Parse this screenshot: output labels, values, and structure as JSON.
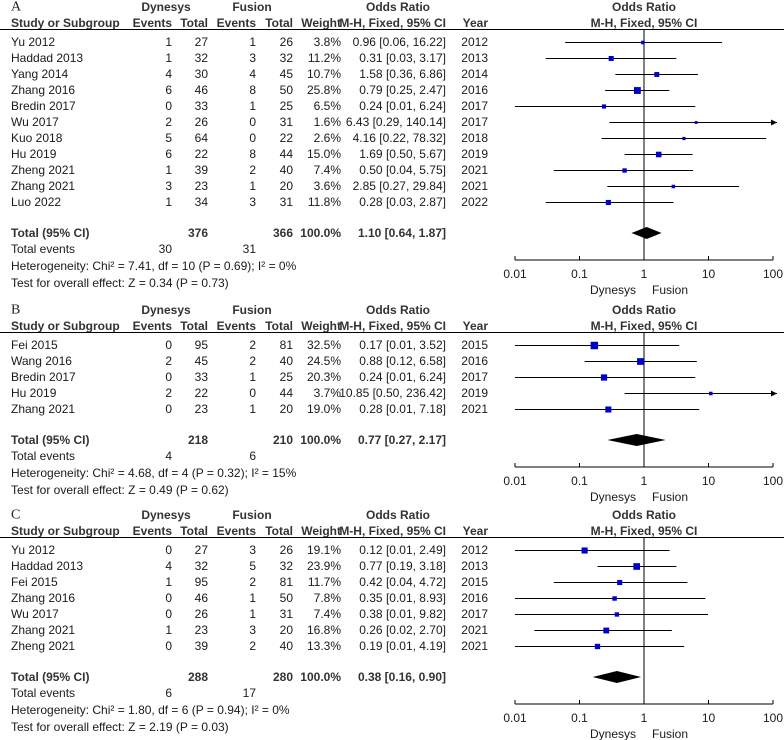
{
  "chart_data": [
    {
      "type": "forest",
      "panel_label": "A",
      "group1": "Dynesys",
      "group2": "Fusion",
      "or_title": "Odds Ratio",
      "columns": {
        "study": "Study or Subgroup",
        "events": "Events",
        "total": "Total",
        "weight": "Weight",
        "method": "M-H, Fixed, 95% CI",
        "year": "Year"
      },
      "studies": [
        {
          "name": "Yu 2012",
          "e1": "1",
          "t1": "27",
          "e2": "1",
          "t2": "26",
          "weight": "3.8%",
          "or_text": "0.96 [0.06, 16.22]",
          "year": "2012",
          "or": 0.96,
          "lo": 0.06,
          "hi": 16.22,
          "w": 3.8
        },
        {
          "name": "Haddad 2013",
          "e1": "1",
          "t1": "32",
          "e2": "3",
          "t2": "32",
          "weight": "11.2%",
          "or_text": "0.31 [0.03, 3.17]",
          "year": "2013",
          "or": 0.31,
          "lo": 0.03,
          "hi": 3.17,
          "w": 11.2
        },
        {
          "name": "Yang 2014",
          "e1": "4",
          "t1": "30",
          "e2": "4",
          "t2": "45",
          "weight": "10.7%",
          "or_text": "1.58 [0.36, 6.86]",
          "year": "2014",
          "or": 1.58,
          "lo": 0.36,
          "hi": 6.86,
          "w": 10.7
        },
        {
          "name": "Zhang 2016",
          "e1": "6",
          "t1": "46",
          "e2": "8",
          "t2": "50",
          "weight": "25.8%",
          "or_text": "0.79 [0.25, 2.47]",
          "year": "2016",
          "or": 0.79,
          "lo": 0.25,
          "hi": 2.47,
          "w": 25.8
        },
        {
          "name": "Bredin 2017",
          "e1": "0",
          "t1": "33",
          "e2": "1",
          "t2": "25",
          "weight": "6.5%",
          "or_text": "0.24 [0.01, 6.24]",
          "year": "2017",
          "or": 0.24,
          "lo": 0.01,
          "hi": 6.24,
          "w": 6.5
        },
        {
          "name": "Wu 2017",
          "e1": "2",
          "t1": "26",
          "e2": "0",
          "t2": "31",
          "weight": "1.6%",
          "or_text": "6.43 [0.29, 140.14]",
          "year": "2017",
          "or": 6.43,
          "lo": 0.29,
          "hi": 140.14,
          "w": 1.6
        },
        {
          "name": "Kuo 2018",
          "e1": "5",
          "t1": "64",
          "e2": "0",
          "t2": "22",
          "weight": "2.6%",
          "or_text": "4.16 [0.22, 78.32]",
          "year": "2018",
          "or": 4.16,
          "lo": 0.22,
          "hi": 78.32,
          "w": 2.6
        },
        {
          "name": "Hu 2019",
          "e1": "6",
          "t1": "22",
          "e2": "8",
          "t2": "44",
          "weight": "15.0%",
          "or_text": "1.69 [0.50, 5.67]",
          "year": "2019",
          "or": 1.69,
          "lo": 0.5,
          "hi": 5.67,
          "w": 15.0
        },
        {
          "name": "Zheng 2021",
          "e1": "1",
          "t1": "39",
          "e2": "2",
          "t2": "40",
          "weight": "7.4%",
          "or_text": "0.50 [0.04, 5.75]",
          "year": "2021",
          "or": 0.5,
          "lo": 0.04,
          "hi": 5.75,
          "w": 7.4
        },
        {
          "name": "Zhang 2021",
          "e1": "3",
          "t1": "23",
          "e2": "1",
          "t2": "20",
          "weight": "3.6%",
          "or_text": "2.85 [0.27, 29.84]",
          "year": "2021",
          "or": 2.85,
          "lo": 0.27,
          "hi": 29.84,
          "w": 3.6
        },
        {
          "name": "Luo 2022",
          "e1": "1",
          "t1": "34",
          "e2": "3",
          "t2": "31",
          "weight": "11.8%",
          "or_text": "0.28 [0.03, 2.87]",
          "year": "2022",
          "or": 0.28,
          "lo": 0.03,
          "hi": 2.87,
          "w": 11.8
        }
      ],
      "total": {
        "label": "Total (95% CI)",
        "t1": "376",
        "t2": "366",
        "weight": "100.0%",
        "or_text": "1.10 [0.64, 1.87]",
        "or": 1.1,
        "lo": 0.64,
        "hi": 1.87
      },
      "total_events": {
        "label": "Total events",
        "e1": "30",
        "e2": "31"
      },
      "heterogeneity": "Heterogeneity: Chi² = 7.41, df = 10 (P = 0.69); I² = 0%",
      "overall_effect": "Test for overall effect: Z = 0.34 (P = 0.73)",
      "axis": {
        "scale": "log",
        "range": [
          0.01,
          100
        ],
        "ticks": [
          0.01,
          0.1,
          1,
          10,
          100
        ],
        "tick_labels": [
          "0.01",
          "0.1",
          "1",
          "10",
          "100"
        ]
      },
      "favours_left": "Dynesys",
      "favours_right": "Fusion"
    },
    {
      "type": "forest",
      "panel_label": "B",
      "group1": "Dynesys",
      "group2": "Fusion",
      "or_title": "Odds Ratio",
      "columns": {
        "study": "Study or Subgroup",
        "events": "Events",
        "total": "Total",
        "weight": "Weight",
        "method": "M-H, Fixed, 95% CI",
        "year": "Year"
      },
      "studies": [
        {
          "name": "Fei 2015",
          "e1": "0",
          "t1": "95",
          "e2": "2",
          "t2": "81",
          "weight": "32.5%",
          "or_text": "0.17 [0.01, 3.52]",
          "year": "2015",
          "or": 0.17,
          "lo": 0.01,
          "hi": 3.52,
          "w": 32.5
        },
        {
          "name": "Wang 2016",
          "e1": "2",
          "t1": "45",
          "e2": "2",
          "t2": "40",
          "weight": "24.5%",
          "or_text": "0.88 [0.12, 6.58]",
          "year": "2016",
          "or": 0.88,
          "lo": 0.12,
          "hi": 6.58,
          "w": 24.5
        },
        {
          "name": "Bredin 2017",
          "e1": "0",
          "t1": "33",
          "e2": "1",
          "t2": "25",
          "weight": "20.3%",
          "or_text": "0.24 [0.01, 6.24]",
          "year": "2017",
          "or": 0.24,
          "lo": 0.01,
          "hi": 6.24,
          "w": 20.3
        },
        {
          "name": "Hu 2019",
          "e1": "2",
          "t1": "22",
          "e2": "0",
          "t2": "44",
          "weight": "3.7%",
          "or_text": "10.85 [0.50, 236.42]",
          "year": "2019",
          "or": 10.85,
          "lo": 0.5,
          "hi": 236.42,
          "w": 3.7
        },
        {
          "name": "Zhang 2021",
          "e1": "0",
          "t1": "23",
          "e2": "1",
          "t2": "20",
          "weight": "19.0%",
          "or_text": "0.28 [0.01, 7.18]",
          "year": "2021",
          "or": 0.28,
          "lo": 0.01,
          "hi": 7.18,
          "w": 19.0
        }
      ],
      "total": {
        "label": "Total (95% CI)",
        "t1": "218",
        "t2": "210",
        "weight": "100.0%",
        "or_text": "0.77 [0.27, 2.17]",
        "or": 0.77,
        "lo": 0.27,
        "hi": 2.17
      },
      "total_events": {
        "label": "Total events",
        "e1": "4",
        "e2": "6"
      },
      "heterogeneity": "Heterogeneity: Chi² = 4.68, df = 4 (P = 0.32); I² = 15%",
      "overall_effect": "Test for overall effect: Z = 0.49 (P = 0.62)",
      "axis": {
        "scale": "log",
        "range": [
          0.01,
          100
        ],
        "ticks": [
          0.01,
          0.1,
          1,
          10,
          100
        ],
        "tick_labels": [
          "0.01",
          "0.1",
          "1",
          "10",
          "100"
        ]
      },
      "favours_left": "Dynesys",
      "favours_right": "Fusion"
    },
    {
      "type": "forest",
      "panel_label": "C",
      "group1": "Dynesys",
      "group2": "Fusion",
      "or_title": "Odds Ratio",
      "columns": {
        "study": "Study or Subgroup",
        "events": "Events",
        "total": "Total",
        "weight": "Weight",
        "method": "M-H, Fixed, 95% CI",
        "year": "Year"
      },
      "studies": [
        {
          "name": "Yu 2012",
          "e1": "0",
          "t1": "27",
          "e2": "3",
          "t2": "26",
          "weight": "19.1%",
          "or_text": "0.12 [0.01, 2.49]",
          "year": "2012",
          "or": 0.12,
          "lo": 0.01,
          "hi": 2.49,
          "w": 19.1
        },
        {
          "name": "Haddad 2013",
          "e1": "4",
          "t1": "32",
          "e2": "5",
          "t2": "32",
          "weight": "23.9%",
          "or_text": "0.77 [0.19, 3.18]",
          "year": "2013",
          "or": 0.77,
          "lo": 0.19,
          "hi": 3.18,
          "w": 23.9
        },
        {
          "name": "Fei 2015",
          "e1": "1",
          "t1": "95",
          "e2": "2",
          "t2": "81",
          "weight": "11.7%",
          "or_text": "0.42 [0.04, 4.72]",
          "year": "2015",
          "or": 0.42,
          "lo": 0.04,
          "hi": 4.72,
          "w": 11.7
        },
        {
          "name": "Zhang 2016",
          "e1": "0",
          "t1": "46",
          "e2": "1",
          "t2": "50",
          "weight": "7.8%",
          "or_text": "0.35 [0.01, 8.93]",
          "year": "2016",
          "or": 0.35,
          "lo": 0.01,
          "hi": 8.93,
          "w": 7.8
        },
        {
          "name": "Wu 2017",
          "e1": "0",
          "t1": "26",
          "e2": "1",
          "t2": "31",
          "weight": "7.4%",
          "or_text": "0.38 [0.01, 9.82]",
          "year": "2017",
          "or": 0.38,
          "lo": 0.01,
          "hi": 9.82,
          "w": 7.4
        },
        {
          "name": "Zhang 2021",
          "e1": "1",
          "t1": "23",
          "e2": "3",
          "t2": "20",
          "weight": "16.8%",
          "or_text": "0.26 [0.02, 2.70]",
          "year": "2021",
          "or": 0.26,
          "lo": 0.02,
          "hi": 2.7,
          "w": 16.8
        },
        {
          "name": "Zheng 2021",
          "e1": "0",
          "t1": "39",
          "e2": "2",
          "t2": "40",
          "weight": "13.3%",
          "or_text": "0.19 [0.01, 4.19]",
          "year": "2021",
          "or": 0.19,
          "lo": 0.01,
          "hi": 4.19,
          "w": 13.3
        }
      ],
      "total": {
        "label": "Total (95% CI)",
        "t1": "288",
        "t2": "280",
        "weight": "100.0%",
        "or_text": "0.38 [0.16, 0.90]",
        "or": 0.38,
        "lo": 0.16,
        "hi": 0.9
      },
      "total_events": {
        "label": "Total events",
        "e1": "6",
        "e2": "17"
      },
      "heterogeneity": "Heterogeneity: Chi² = 1.80, df = 6 (P = 0.94); I² = 0%",
      "overall_effect": "Test for overall effect: Z = 2.19 (P = 0.03)",
      "axis": {
        "scale": "log",
        "range": [
          0.01,
          100
        ],
        "ticks": [
          0.01,
          0.1,
          1,
          10,
          100
        ],
        "tick_labels": [
          "0.01",
          "0.1",
          "1",
          "10",
          "100"
        ]
      },
      "favours_left": "Dynesys",
      "favours_right": "Fusion"
    }
  ]
}
